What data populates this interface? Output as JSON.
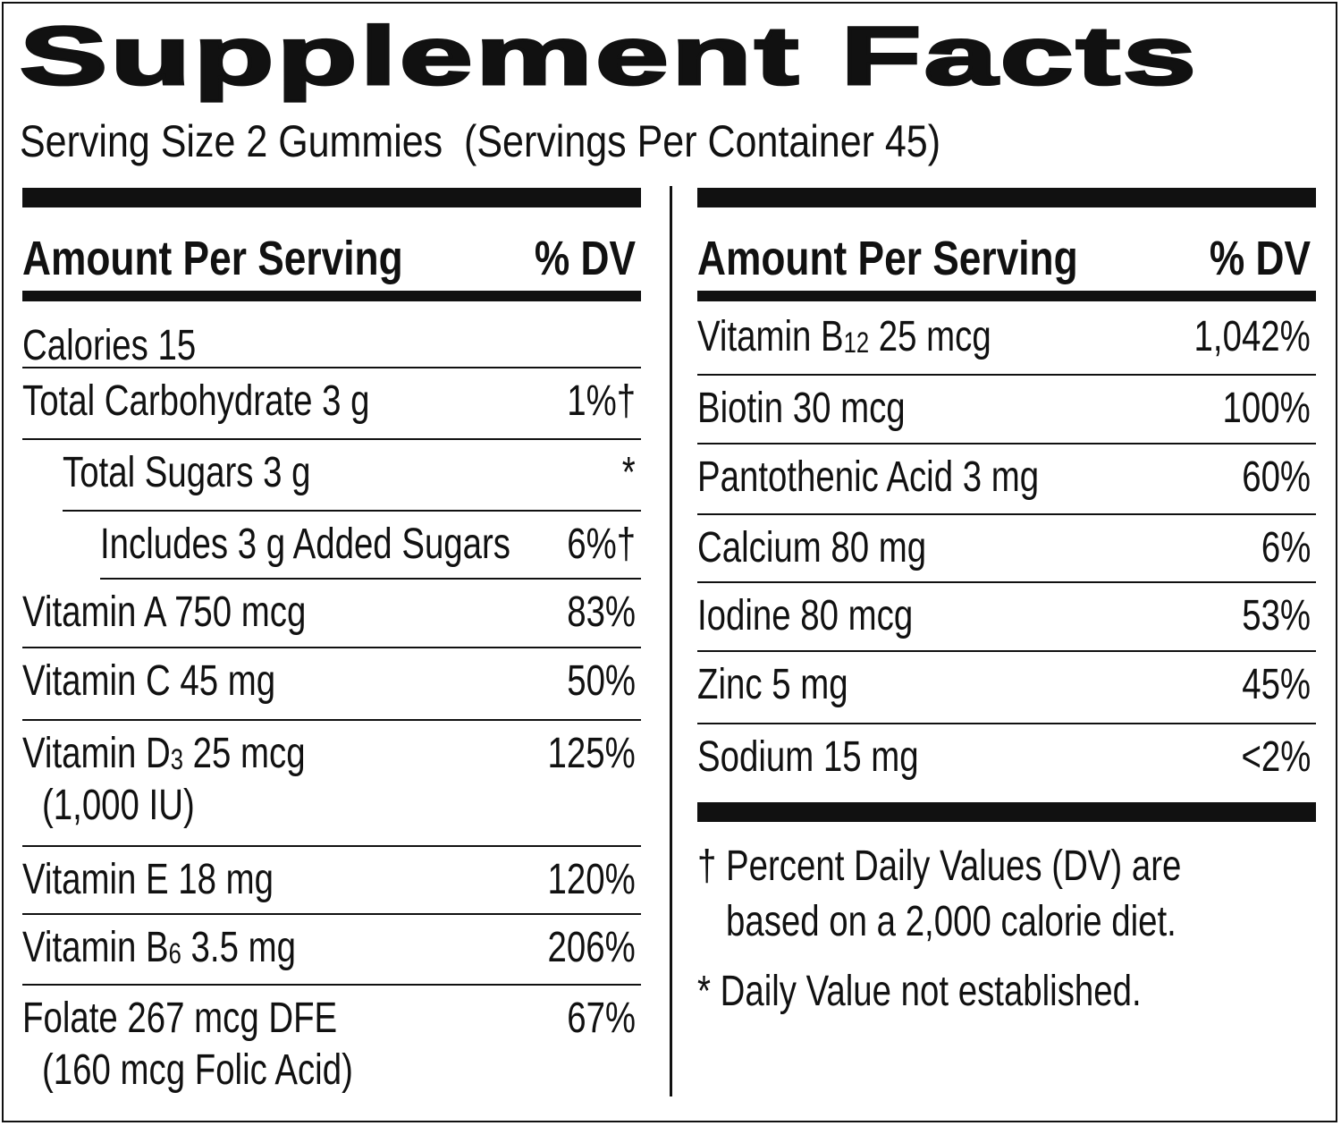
{
  "title": "Supplement Facts",
  "serving": "Serving Size 2 Gummies  (Servings Per Container 45)",
  "header": {
    "amount": "Amount Per Serving",
    "dv": "% DV"
  },
  "left_rows": [
    {
      "name": "Calories 15",
      "dv": ""
    },
    {
      "name": "Total Carbohydrate 3 g",
      "dv": "1%†"
    },
    {
      "name": "Total Sugars 3 g",
      "dv": "*"
    },
    {
      "name": "Includes 3 g Added Sugars",
      "dv": "6%†"
    },
    {
      "name": "Vitamin A 750 mcg",
      "dv": "83%"
    },
    {
      "name": "Vitamin C 45 mg",
      "dv": "50%"
    },
    {
      "name": "Vitamin D",
      "sub": "3",
      "rest": " 25 mcg",
      "line2": "(1,000 IU)",
      "dv": "125%"
    },
    {
      "name": "Vitamin E 18 mg",
      "dv": "120%"
    },
    {
      "name": "Vitamin B",
      "sub": "6",
      "rest": " 3.5 mg",
      "dv": "206%"
    },
    {
      "name": "Folate 267 mcg DFE",
      "line2": "(160 mcg Folic Acid)",
      "dv": "67%"
    }
  ],
  "right_rows": [
    {
      "name": "Vitamin B",
      "sub": "12",
      "rest": " 25 mcg",
      "dv": "1,042%"
    },
    {
      "name": "Biotin 30 mcg",
      "dv": "100%"
    },
    {
      "name": "Pantothenic Acid 3 mg",
      "dv": "60%"
    },
    {
      "name": "Calcium 80 mg",
      "dv": "6%"
    },
    {
      "name": "Iodine 80 mcg",
      "dv": "53%"
    },
    {
      "name": "Zinc 5 mg",
      "dv": "45%"
    },
    {
      "name": "Sodium 15 mg",
      "dv": "<2%"
    }
  ],
  "footnotes": {
    "dagger_1": "† Percent Daily Values (DV) are",
    "dagger_2": "based on a 2,000 calorie diet.",
    "asterisk": "* Daily Value not established."
  }
}
